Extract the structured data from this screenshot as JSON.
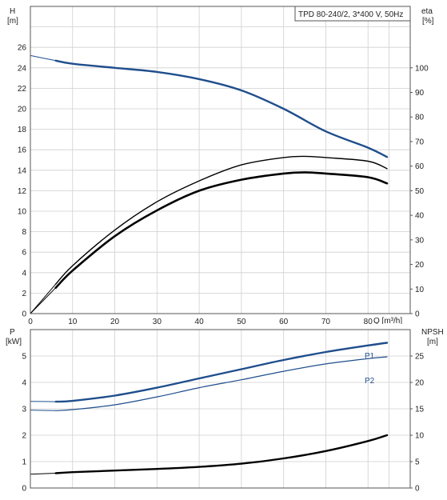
{
  "header": {
    "title": "TPD 80-240/2, 3*400 V, 50Hz"
  },
  "colors": {
    "blue": "#1f4e8c",
    "black": "#000000",
    "grid": "#cfcfcf"
  },
  "chart_data": [
    {
      "type": "line",
      "panel": "head-and-efficiency",
      "title": "TPD 80-240/2, 3*400 V, 50Hz",
      "xlabel": "Q [m³/h]",
      "ylabel": "H [m]",
      "ylabel_lines": [
        "H",
        "[m]"
      ],
      "y2label_lines": [
        "eta",
        "[%]"
      ],
      "xlim": [
        0,
        90
      ],
      "ylim": [
        0,
        30
      ],
      "y2lim": [
        0,
        125
      ],
      "xticks": [
        "0",
        "10",
        "20",
        "30",
        "40",
        "50",
        "60",
        "70",
        "80"
      ],
      "yticks": [
        "0",
        "2",
        "4",
        "6",
        "8",
        "10",
        "12",
        "14",
        "16",
        "18",
        "20",
        "22",
        "24",
        "26"
      ],
      "y2ticks": [
        "0",
        "10",
        "20",
        "30",
        "40",
        "50",
        "60",
        "70",
        "80",
        "90",
        "100"
      ],
      "grid": true,
      "series": [
        {
          "name": "",
          "axis": "left",
          "color": "#1f4e8c",
          "x": [
            0,
            6,
            10,
            20,
            30,
            40,
            50,
            60,
            70,
            80,
            84.5
          ],
          "y": [
            25.2,
            24.7,
            24.4,
            24.0,
            23.6,
            22.9,
            21.8,
            20.0,
            17.8,
            16.2,
            15.3
          ]
        },
        {
          "name": "",
          "axis": "right",
          "color": "#000000",
          "x": [
            0,
            6,
            10,
            20,
            30,
            40,
            50,
            60,
            65,
            70,
            80,
            84.5
          ],
          "y": [
            0,
            12,
            19.5,
            34,
            45.5,
            54,
            60.5,
            63.5,
            64,
            63.5,
            62,
            59
          ]
        },
        {
          "name": "",
          "axis": "right",
          "color": "#000000",
          "x": [
            0,
            6,
            10,
            20,
            30,
            40,
            50,
            60,
            65,
            70,
            80,
            84.5
          ],
          "y": [
            0,
            10.5,
            17.5,
            31.5,
            42,
            50,
            54.5,
            57,
            57.5,
            57,
            55.5,
            53
          ]
        }
      ]
    },
    {
      "type": "line",
      "panel": "power-and-npsh",
      "xlabel": "",
      "ylabel": "P [kW]",
      "ylabel_lines": [
        "P",
        "[kW]"
      ],
      "y2label_lines": [
        "NPSH",
        "[m]"
      ],
      "xlim": [
        0,
        90
      ],
      "ylim": [
        0,
        6
      ],
      "y2lim": [
        0,
        30
      ],
      "yticks": [
        "0",
        "1",
        "2",
        "3",
        "4",
        "5"
      ],
      "y2ticks": [
        "0",
        "5",
        "10",
        "15",
        "20",
        "25"
      ],
      "grid": true,
      "series": [
        {
          "name": "P1",
          "axis": "left",
          "color": "#1f4e8c",
          "x": [
            0,
            6,
            10,
            20,
            30,
            40,
            50,
            60,
            70,
            80,
            84.5
          ],
          "y": [
            3.28,
            3.27,
            3.3,
            3.5,
            3.8,
            4.15,
            4.5,
            4.85,
            5.15,
            5.4,
            5.5
          ]
        },
        {
          "name": "P2",
          "axis": "left",
          "color": "#1f4e8c",
          "x": [
            0,
            6,
            10,
            20,
            30,
            40,
            50,
            60,
            70,
            80,
            84.5
          ],
          "y": [
            2.95,
            2.93,
            2.97,
            3.15,
            3.45,
            3.8,
            4.1,
            4.42,
            4.7,
            4.9,
            4.97
          ]
        },
        {
          "name": "",
          "axis": "right",
          "color": "#000000",
          "x": [
            0,
            6,
            10,
            20,
            30,
            40,
            50,
            60,
            70,
            80,
            84.5
          ],
          "y": [
            2.6,
            2.8,
            3.0,
            3.3,
            3.6,
            4.0,
            4.6,
            5.6,
            7.0,
            8.9,
            10.0
          ]
        }
      ]
    }
  ]
}
